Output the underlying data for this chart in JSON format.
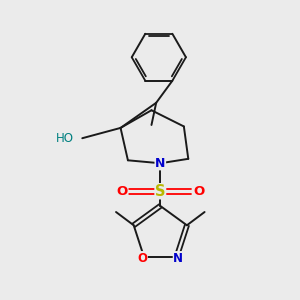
{
  "bg_color": "#ebebeb",
  "bond_color": "#1a1a1a",
  "N_color": "#0000cc",
  "O_color": "#ff0000",
  "S_color": "#b8b800",
  "HO_color": "#008080",
  "figsize": [
    3.0,
    3.0
  ],
  "dpi": 100,
  "xlim": [
    0,
    10
  ],
  "ylim": [
    0,
    10
  ]
}
